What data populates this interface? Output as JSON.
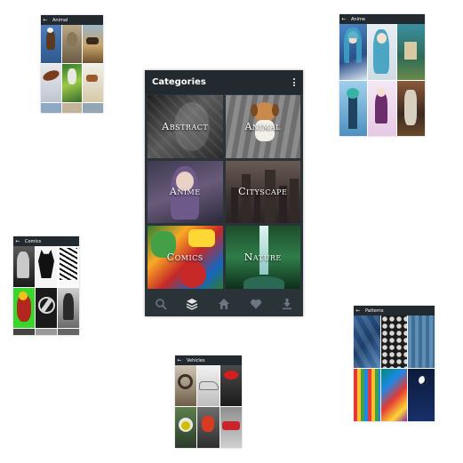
{
  "main": {
    "title": "Categories",
    "categories": [
      {
        "label": "Abstract"
      },
      {
        "label": "Animal"
      },
      {
        "label": "Anime"
      },
      {
        "label": "Cityscape"
      },
      {
        "label": "Comics"
      },
      {
        "label": "Nature"
      }
    ],
    "nav": [
      "search-icon",
      "layers-icon",
      "home-icon",
      "heart-icon",
      "download-icon"
    ]
  },
  "minis": {
    "animal": {
      "title": "Animal"
    },
    "anime": {
      "title": "Anime"
    },
    "comics": {
      "title": "Comics"
    },
    "patterns": {
      "title": "Patterns"
    },
    "vehicles": {
      "title": "Vehicles"
    }
  },
  "colors": {
    "appbar": "#222a30",
    "background": "#2a3338",
    "nav_icon": "#6b7680",
    "nav_active": "#e6e6e6"
  }
}
